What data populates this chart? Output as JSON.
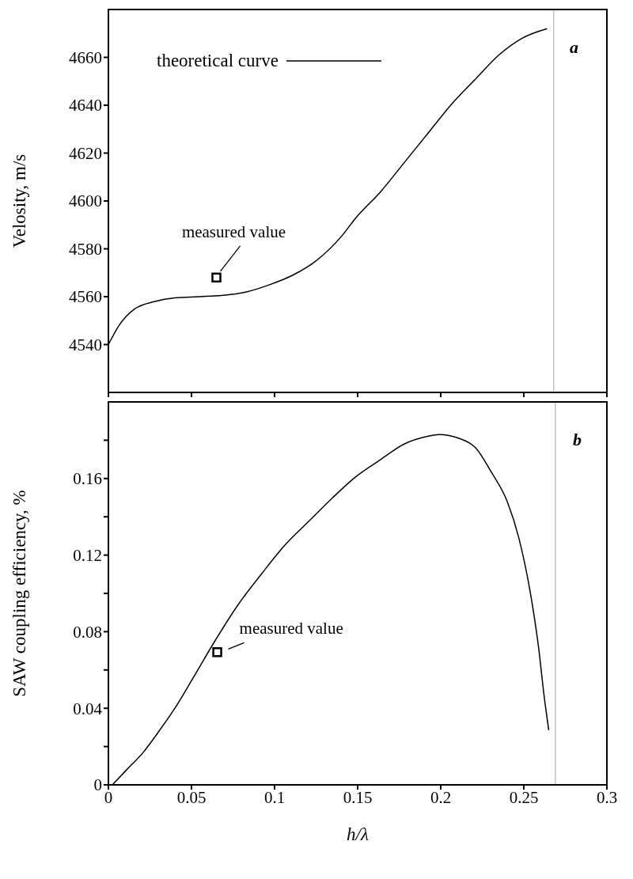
{
  "chart_data": [
    {
      "type": "line",
      "ylabel": "Velosity,  m/s",
      "xlim": [
        0,
        0.3
      ],
      "xticks": [
        0,
        0.05,
        0.1,
        0.15,
        0.2,
        0.25,
        0.3
      ],
      "ylim": [
        4520,
        4680
      ],
      "yticks": [
        4540,
        4560,
        4580,
        4600,
        4620,
        4640,
        4660
      ],
      "tick_labels": "y",
      "legend": "top",
      "series": [
        {
          "name": "theoretical curve",
          "type": "line",
          "color": "#000000",
          "x": [
            0,
            0.0064,
            0.016,
            0.028,
            0.04,
            0.054,
            0.068,
            0.083,
            0.097,
            0.111,
            0.125,
            0.14,
            0.149,
            0.164,
            0.178,
            0.192,
            0.206,
            0.221,
            0.235,
            0.249,
            0.264
          ],
          "values": [
            4540,
            4548,
            4555,
            4558,
            4559.5,
            4560,
            4560.5,
            4562,
            4565,
            4569,
            4575,
            4585,
            4593,
            4604,
            4616,
            4628,
            4640,
            4651,
            4661,
            4668,
            4672
          ]
        },
        {
          "type": "scatter",
          "marker": "square",
          "color": "#000000",
          "x": [
            0.065
          ],
          "values": [
            4568
          ]
        }
      ],
      "ref_lines": [
        {
          "axis": "x",
          "value": 0.268,
          "color": "#c0c0c0"
        }
      ],
      "annotations": [
        {
          "text": "measured value",
          "x": 0.065,
          "y": 4568
        },
        "a"
      ]
    },
    {
      "type": "line",
      "ylabel": "SAW coupling efficiency,  %",
      "xlabel": "h/λ",
      "xlim": [
        0,
        0.3
      ],
      "xticks": [
        0,
        0.05,
        0.1,
        0.15,
        0.2,
        0.25,
        0.3
      ],
      "ylim": [
        0,
        0.2
      ],
      "yticks": [
        0,
        {
          "value": 0.02,
          "label": null
        },
        0.04,
        {
          "value": 0.06,
          "label": null
        },
        0.08,
        {
          "value": 0.1,
          "label": null
        },
        0.12,
        {
          "value": 0.14,
          "label": null
        },
        0.16,
        {
          "value": 0.18,
          "label": null
        }
      ],
      "series": [
        {
          "type": "line",
          "color": "#000000",
          "x": [
            0.0024,
            0.011,
            0.021,
            0.03,
            0.04,
            0.05,
            0.064,
            0.078,
            0.092,
            0.106,
            0.121,
            0.135,
            0.149,
            0.164,
            0.178,
            0.192,
            0.199,
            0.211,
            0.221,
            0.23,
            0.24,
            0.247,
            0.254,
            0.259,
            0.262,
            0.265
          ],
          "values": [
            0,
            0.0079,
            0.017,
            0.0275,
            0.04,
            0.0544,
            0.075,
            0.094,
            0.11,
            0.125,
            0.138,
            0.15,
            0.161,
            0.17,
            0.178,
            0.182,
            0.183,
            0.181,
            0.176,
            0.164,
            0.148,
            0.129,
            0.1,
            0.071,
            0.048,
            0.0286
          ]
        },
        {
          "type": "scatter",
          "marker": "square",
          "color": "#000000",
          "x": [
            0.0655
          ],
          "values": [
            0.0693
          ]
        }
      ],
      "ref_lines": [
        {
          "axis": "x",
          "value": 0.269,
          "color": "#c0c0c0"
        }
      ],
      "annotations": [
        {
          "text": "measured value",
          "x": 0.0655,
          "y": 0.0693
        },
        "b"
      ]
    }
  ]
}
